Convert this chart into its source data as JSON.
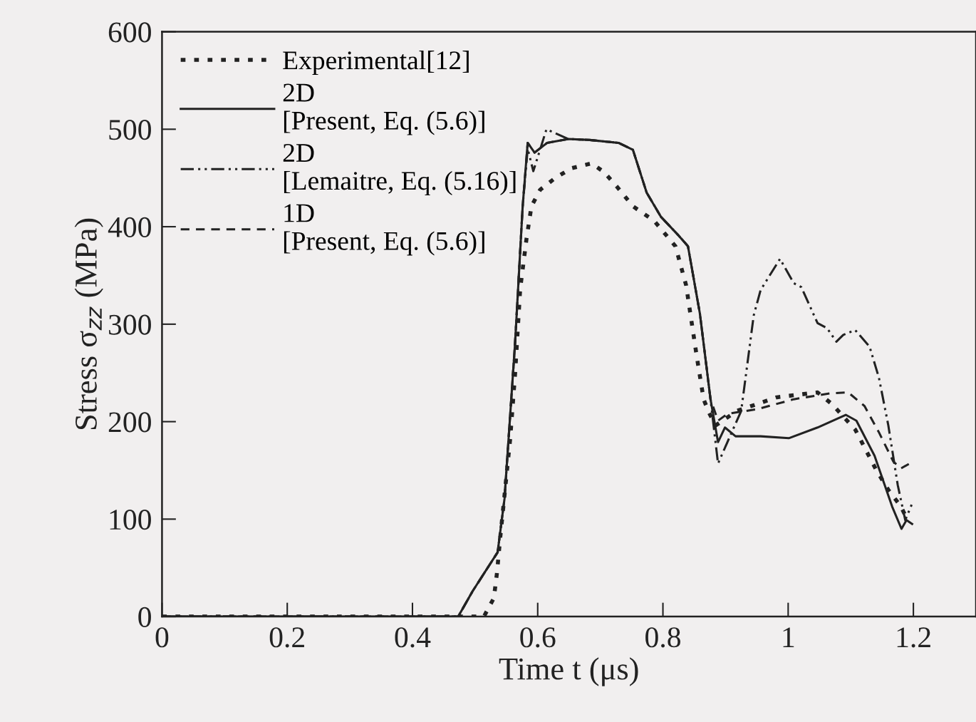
{
  "chart_data": {
    "type": "line",
    "xlabel": "Time t (μs)",
    "ylabel": "Stress σ$_{zz}$ (MPa)",
    "xlim": [
      0,
      1.3
    ],
    "ylim": [
      0,
      600
    ],
    "xticks": [
      0,
      0.2,
      0.4,
      0.6,
      0.8,
      1,
      1.2
    ],
    "yticks": [
      0,
      100,
      200,
      300,
      400,
      500,
      600
    ],
    "grid": false,
    "legend": "top left",
    "marker": "none",
    "series": [
      {
        "name": "Experimental[12]",
        "color": "#222222",
        "line_style": "dotted",
        "x": [
          0,
          0.514,
          0.53,
          0.535,
          0.54,
          0.548,
          0.556,
          0.564,
          0.572,
          0.582,
          0.59,
          0.604,
          0.628,
          0.654,
          0.686,
          0.706,
          0.728,
          0.752,
          0.786,
          0.82,
          0.837,
          0.854,
          0.865,
          0.873,
          0.884,
          0.918,
          0.982,
          1.047,
          1.07,
          1.107,
          1.141,
          1.16,
          1.18,
          1.19
        ],
        "values": [
          0,
          0,
          19,
          45,
          80,
          131,
          182,
          250,
          336,
          387,
          421,
          438,
          450,
          460,
          465,
          456,
          440,
          421,
          406,
          380,
          340,
          267,
          223,
          210,
          196,
          211,
          225,
          230,
          218,
          192,
          150,
          130,
          113,
          100
        ]
      },
      {
        "name": "2D\n[Present, Eq. (5.6)]",
        "color": "#222222",
        "line_style": "solid",
        "x": [
          0,
          0.473,
          0.496,
          0.525,
          0.536,
          0.547,
          0.564,
          0.576,
          0.584,
          0.595,
          0.615,
          0.649,
          0.683,
          0.729,
          0.752,
          0.774,
          0.797,
          0.825,
          0.84,
          0.859,
          0.876,
          0.882,
          0.888,
          0.899,
          0.916,
          0.956,
          1.001,
          1.047,
          1.092,
          1.109,
          1.138,
          1.166,
          1.181,
          1.189,
          1.198
        ],
        "values": [
          0,
          0,
          26,
          55,
          66,
          121,
          282,
          421,
          486,
          476,
          486,
          490,
          489,
          486,
          479,
          435,
          410,
          391,
          380,
          311,
          223,
          201,
          179,
          194,
          185,
          185,
          183,
          194,
          207,
          201,
          165,
          113,
          90,
          99,
          95
        ]
      },
      {
        "name": "2D\n[Lemaitre, Eq. (5.16)]",
        "color": "#222222",
        "line_style": "dashdot",
        "x": [
          0,
          0.473,
          0.496,
          0.525,
          0.536,
          0.547,
          0.564,
          0.576,
          0.584,
          0.593,
          0.614,
          0.649,
          0.683,
          0.729,
          0.752,
          0.774,
          0.797,
          0.825,
          0.84,
          0.859,
          0.876,
          0.888,
          0.903,
          0.925,
          0.945,
          0.956,
          0.987,
          1.009,
          1.021,
          1.047,
          1.062,
          1.077,
          1.088,
          1.107,
          1.13,
          1.145,
          1.16,
          1.175,
          1.187,
          1.198
        ],
        "values": [
          0,
          0,
          26,
          55,
          66,
          121,
          282,
          421,
          480,
          457,
          500,
          490,
          489,
          486,
          479,
          435,
          410,
          391,
          380,
          311,
          223,
          157,
          179,
          211,
          309,
          335,
          367,
          342,
          338,
          301,
          296,
          282,
          289,
          294,
          277,
          245,
          196,
          135,
          99,
          116
        ]
      },
      {
        "name": "1D\n[Present, Eq. (5.6)]",
        "color": "#222222",
        "line_style": "dashed",
        "x": [
          0,
          0.473,
          0.496,
          0.525,
          0.536,
          0.547,
          0.564,
          0.576,
          0.584,
          0.595,
          0.615,
          0.649,
          0.683,
          0.729,
          0.752,
          0.774,
          0.797,
          0.825,
          0.84,
          0.859,
          0.876,
          0.888,
          0.903,
          0.952,
          1.009,
          1.066,
          1.096,
          1.122,
          1.145,
          1.168,
          1.18,
          1.194
        ],
        "values": [
          0,
          0,
          26,
          55,
          66,
          121,
          282,
          421,
          486,
          476,
          486,
          490,
          489,
          486,
          479,
          435,
          410,
          391,
          380,
          311,
          223,
          201,
          208,
          213,
          223,
          229,
          230,
          216,
          189,
          159,
          152,
          157
        ]
      }
    ]
  }
}
